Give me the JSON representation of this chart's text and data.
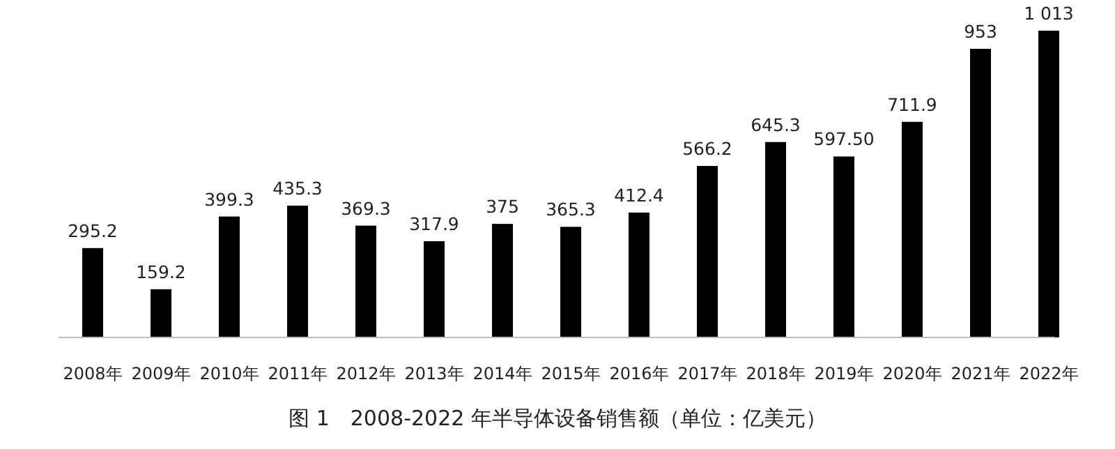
{
  "chart_data": {
    "type": "bar",
    "title": "图 1　2008-2022 年半导体设备销售额（单位：亿美元）",
    "categories": [
      "2008年",
      "2009年",
      "2010年",
      "2011年",
      "2012年",
      "2013年",
      "2014年",
      "2015年",
      "2016年",
      "2017年",
      "2018年",
      "2019年",
      "2020年",
      "2021年",
      "2022年"
    ],
    "values": [
      295.2,
      159.2,
      399.3,
      435.3,
      369.3,
      317.9,
      375,
      365.3,
      412.4,
      566.2,
      645.3,
      597.5,
      711.9,
      953,
      1013
    ],
    "value_labels": [
      "295.2",
      "159.2",
      "399.3",
      "435.3",
      "369.3",
      "317.9",
      "375",
      "365.3",
      "412.4",
      "566.2",
      "645.3",
      "597.50",
      "711.9",
      "953",
      "1 013"
    ],
    "color": "#000000"
  }
}
